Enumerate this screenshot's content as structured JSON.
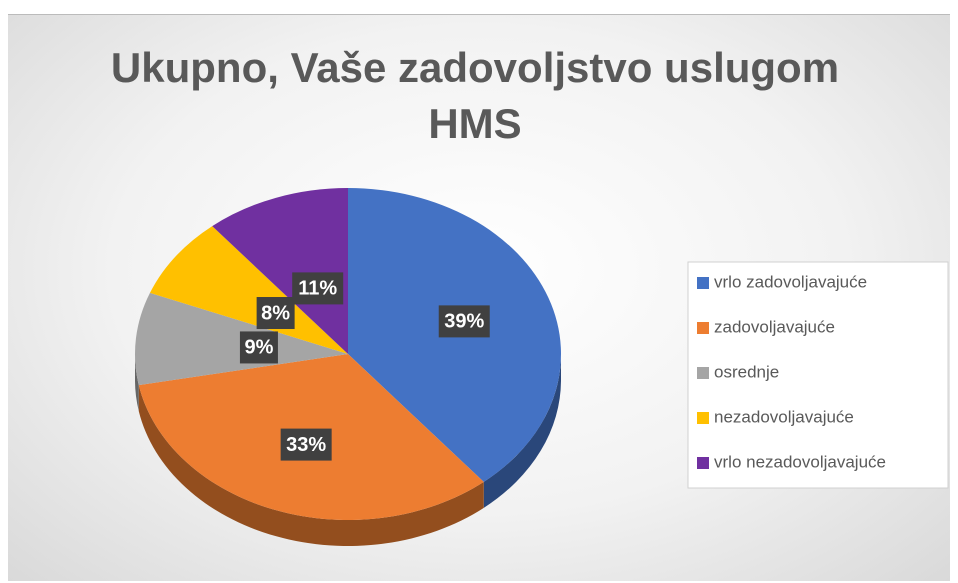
{
  "chart_data": {
    "type": "pie",
    "title": "Ukupno, Vaše zadovoljstvo uslugom HMS",
    "categories": [
      "vrlo zadovoljavajuće",
      "zadovoljavajuće",
      "osrednje",
      "nezadovoljavajuće",
      "vrlo nezadovoljavajuće"
    ],
    "values": [
      39,
      33,
      9,
      8,
      11
    ],
    "value_labels": [
      "39%",
      "33%",
      "9%",
      "8%",
      "11%"
    ],
    "colors": [
      "#4472c4",
      "#ed7d31",
      "#a5a5a5",
      "#ffc000",
      "#7030a0"
    ],
    "legend": "right"
  }
}
